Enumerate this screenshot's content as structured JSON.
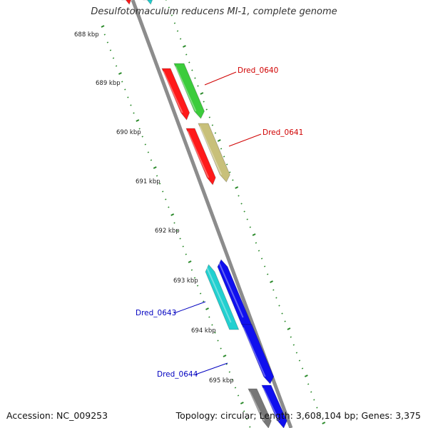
{
  "title": "Desulfotomaculum reducens MI-1, complete genome",
  "footer": {
    "accession": "Accession: NC_009253",
    "summary": "Topology: circular; Length: 3,608,104 bp; Genes: 3,375"
  },
  "ticks": [
    "688 kbp",
    "689 kbp",
    "690 kbp",
    "691 kbp",
    "692 kbp",
    "693 kbp",
    "694 kbp",
    "695 kbp"
  ],
  "gene_labels": [
    {
      "name": "Dred_0640",
      "color": "#d00000"
    },
    {
      "name": "Dred_0641",
      "color": "#d00000"
    },
    {
      "name": "Dred_0643",
      "color": "#0000c0"
    },
    {
      "name": "Dred_0644",
      "color": "#0000c0"
    }
  ],
  "colors": {
    "backbone": "#8c8c8c",
    "tick": "#2a8a2a",
    "red_gene": "#ff1a1a",
    "green_gene": "#3ccc3c",
    "khaki_gene": "#c8c07a",
    "cyan_gene": "#22d0d0",
    "blue_gene": "#1010ee",
    "gray_gene": "#777777"
  }
}
